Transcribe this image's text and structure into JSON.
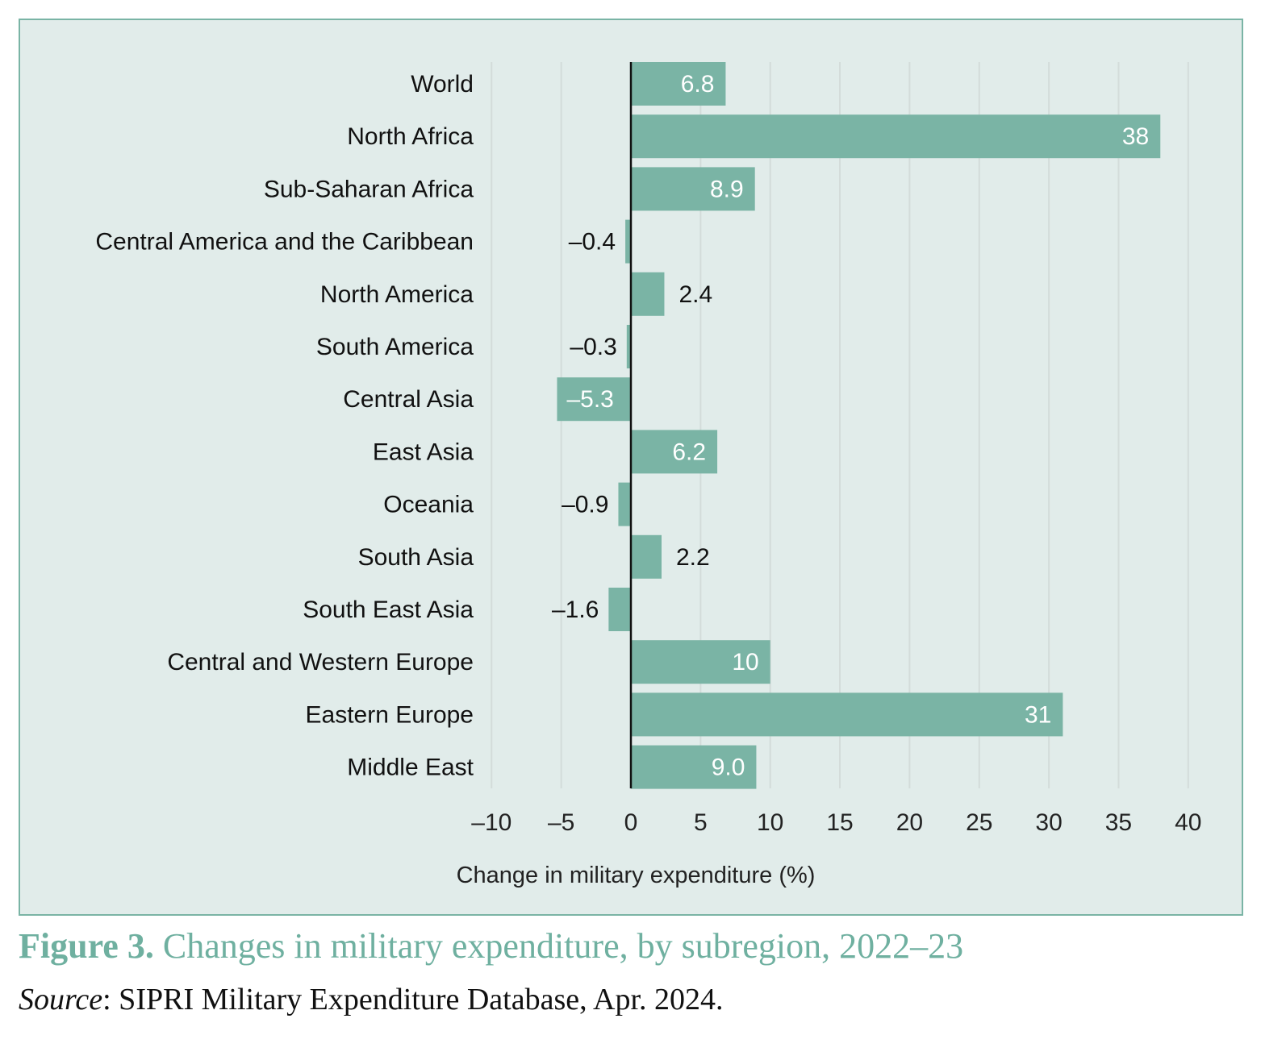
{
  "figure": {
    "number": "Figure 3.",
    "title": "Changes in military expenditure, by subregion, 2022–23"
  },
  "source": {
    "label": "Source",
    "text": ": SIPRI Military Expenditure Database, Apr. 2024."
  },
  "colors": {
    "background": "#e1ecea",
    "bar": "#7ab4a5",
    "border": "#7ab4a5",
    "gridline": "#d3dcda",
    "zero_line": "#111111",
    "caption": "#6fb0a0"
  },
  "chart_data": {
    "type": "bar",
    "orientation": "horizontal",
    "categories": [
      "World",
      "North Africa",
      "Sub-Saharan Africa",
      "Central America and the Caribbean",
      "North America",
      "South America",
      "Central Asia",
      "East Asia",
      "Oceania",
      "South Asia",
      "South East Asia",
      "Central and Western Europe",
      "Eastern Europe",
      "Middle East"
    ],
    "values": [
      6.8,
      38,
      8.9,
      -0.4,
      2.4,
      -0.3,
      -5.3,
      6.2,
      -0.9,
      2.2,
      -1.6,
      10,
      31,
      9.0
    ],
    "value_labels": [
      "6.8",
      "38",
      "8.9",
      "–0.4",
      "2.4",
      "–0.3",
      "–5.3",
      "6.2",
      "–0.9",
      "2.2",
      "–1.6",
      "10",
      "31",
      "9.0"
    ],
    "xlabel": "Change in military expenditure (%)",
    "xlim": [
      -10,
      40
    ],
    "xticks": [
      -10,
      -5,
      0,
      5,
      10,
      15,
      20,
      25,
      30,
      35,
      40
    ],
    "xtick_labels": [
      "–10",
      "–5",
      "0",
      "5",
      "10",
      "15",
      "20",
      "25",
      "30",
      "35",
      "40"
    ],
    "grid": "vertical"
  }
}
